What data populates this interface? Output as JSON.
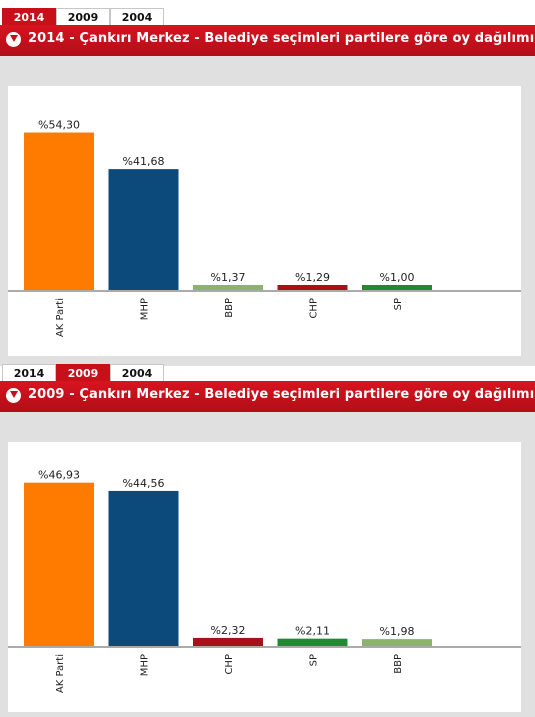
{
  "charts": [
    {
      "tabs": [
        {
          "label": "2014",
          "active": true
        },
        {
          "label": "2009",
          "active": false
        },
        {
          "label": "2004",
          "active": false
        }
      ],
      "title": "2014 - Çankırı Merkez - Belediye seçimleri partilere göre oy dağılımı",
      "chart_data": {
        "type": "bar",
        "title": "2014 - Çankırı Merkez - Belediye seçimleri partilere göre oy dağılımı",
        "categories": [
          "AK Parti",
          "MHP",
          "BBP",
          "CHP",
          "SP"
        ],
        "values": [
          54.3,
          41.68,
          1.37,
          1.29,
          1.0
        ],
        "value_labels": [
          "%54,30",
          "%41,68",
          "%1,37",
          "%1,29",
          "%1,00"
        ],
        "colors": [
          "#ff7b00",
          "#0c4a7c",
          "#8db270",
          "#a8101a",
          "#1e8a35"
        ],
        "ylim": [
          0,
          60
        ],
        "grid": false,
        "legend": "none"
      }
    },
    {
      "tabs": [
        {
          "label": "2014",
          "active": false
        },
        {
          "label": "2009",
          "active": true
        },
        {
          "label": "2004",
          "active": false
        }
      ],
      "title": "2009 - Çankırı Merkez - Belediye seçimleri partilere göre oy dağılımı",
      "chart_data": {
        "type": "bar",
        "title": "2009 - Çankırı Merkez - Belediye seçimleri partilere göre oy dağılımı",
        "categories": [
          "AK Parti",
          "MHP",
          "CHP",
          "SP",
          "BBP"
        ],
        "values": [
          46.93,
          44.56,
          2.32,
          2.11,
          1.98
        ],
        "value_labels": [
          "%46,93",
          "%44,56",
          "%2,32",
          "%2,11",
          "%1,98"
        ],
        "colors": [
          "#ff7b00",
          "#0c4a7c",
          "#a8101a",
          "#1e8a35",
          "#8db270"
        ],
        "ylim": [
          0,
          50
        ],
        "grid": false,
        "legend": "none"
      }
    }
  ]
}
